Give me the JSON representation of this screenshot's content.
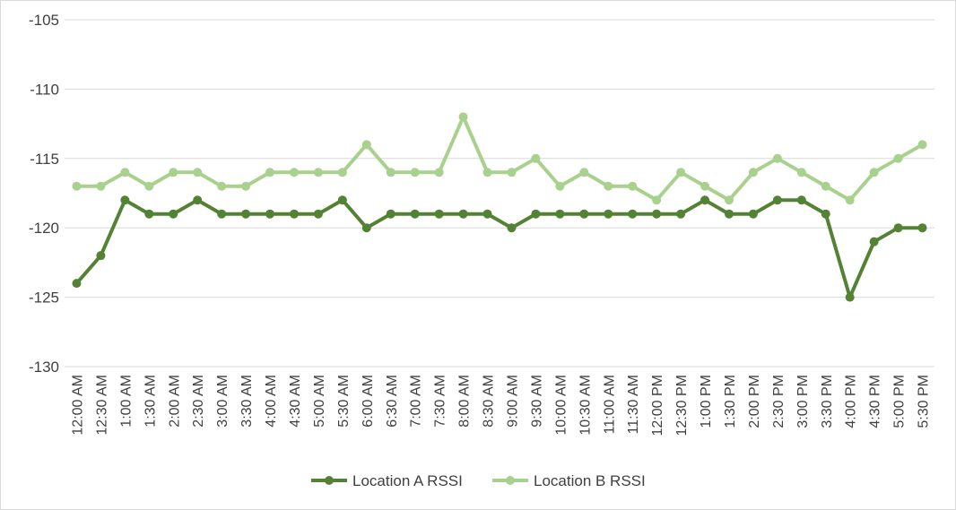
{
  "chart_data": {
    "type": "line",
    "title": "",
    "xlabel": "",
    "ylabel": "",
    "ylim": [
      -130,
      -105
    ],
    "yticks": [
      -105,
      -110,
      -115,
      -120,
      -125,
      -130
    ],
    "grid": true,
    "legend_position": "bottom",
    "categories": [
      "12:00 AM",
      "12:30 AM",
      "1:00 AM",
      "1:30 AM",
      "2:00 AM",
      "2:30 AM",
      "3:00 AM",
      "3:30 AM",
      "4:00 AM",
      "4:30 AM",
      "5:00 AM",
      "5:30 AM",
      "6:00 AM",
      "6:30 AM",
      "7:00 AM",
      "7:30 AM",
      "8:00 AM",
      "8:30 AM",
      "9:00 AM",
      "9:30 AM",
      "10:00 AM",
      "10:30 AM",
      "11:00 AM",
      "11:30 AM",
      "12:00 PM",
      "12:30 PM",
      "1:00 PM",
      "1:30 PM",
      "2:00 PM",
      "2:30 PM",
      "3:00 PM",
      "3:30 PM",
      "4:00 PM",
      "4:30 PM",
      "5:00 PM",
      "5:30 PM"
    ],
    "series": [
      {
        "name": "Location A RSSI",
        "color": "#548235",
        "values": [
          -124,
          -122,
          -118,
          -119,
          -119,
          -118,
          -119,
          -119,
          -119,
          -119,
          -119,
          -118,
          -120,
          -119,
          -119,
          -119,
          -119,
          -119,
          -120,
          -119,
          -119,
          -119,
          -119,
          -119,
          -119,
          -119,
          -118,
          -119,
          -119,
          -118,
          -118,
          -119,
          -125,
          -121,
          -120,
          -120
        ]
      },
      {
        "name": "Location B RSSI",
        "color": "#a9d18e",
        "values": [
          -117,
          -117,
          -116,
          -117,
          -116,
          -116,
          -117,
          -117,
          -116,
          -116,
          -116,
          -116,
          -114,
          -116,
          -116,
          -116,
          -112,
          -116,
          -116,
          -115,
          -117,
          -116,
          -117,
          -117,
          -118,
          -116,
          -117,
          -118,
          -116,
          -115,
          -116,
          -117,
          -118,
          -116,
          -115,
          -114
        ]
      }
    ]
  }
}
